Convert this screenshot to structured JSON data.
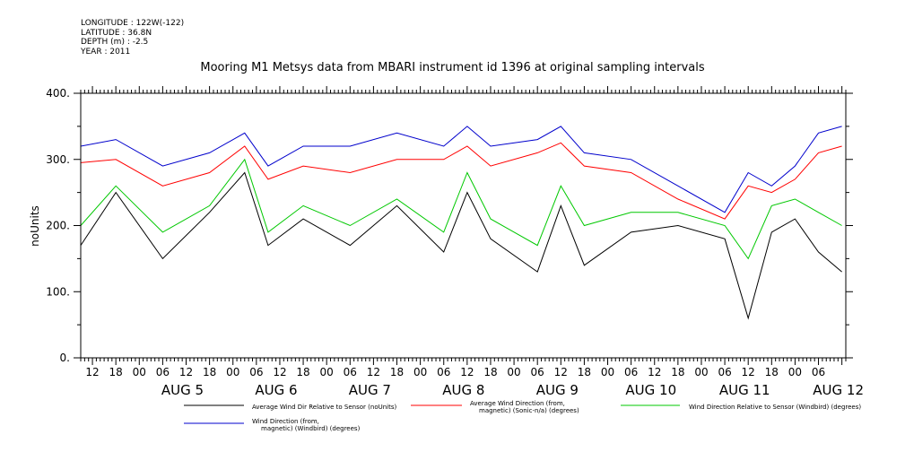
{
  "header": {
    "longitude": "LONGITUDE : 122W(-122)",
    "latitude": "LATITUDE : 36.8N",
    "depth": "DEPTH (m) : -2.5",
    "year": "YEAR : 2011"
  },
  "chart_data": {
    "type": "line",
    "title": "Mooring M1 Metsys data from MBARI instrument id 1396 at original sampling intervals",
    "ylabel": "noUnits",
    "xlabel": "",
    "ylim": [
      0,
      400
    ],
    "xlim": [
      "2011-08-04T09:00",
      "2011-08-12T13:00"
    ],
    "yticks": [
      "0.",
      "100.",
      "200.",
      "300.",
      "400."
    ],
    "xtick_hours": [
      "12",
      "18",
      "00",
      "06",
      "12",
      "18",
      "00",
      "06",
      "12",
      "18",
      "00",
      "06",
      "12",
      "18",
      "00",
      "06",
      "12",
      "18",
      "00",
      "06",
      "12",
      "18",
      "00",
      "06",
      "12",
      "18",
      "00",
      "06",
      "12",
      "18",
      "00",
      "06"
    ],
    "day_labels": [
      "AUG  5",
      "AUG  6",
      "AUG  7",
      "AUG  8",
      "AUG  9",
      "AUG 10",
      "AUG 11",
      "AUG 12"
    ],
    "series": [
      {
        "name": "Average Wind Dir Relative to Sensor (noUnits)",
        "color": "#000000",
        "x": [
          "2011-08-04T09:00",
          "2011-08-04T18:00",
          "2011-08-05T06:00",
          "2011-08-05T18:00",
          "2011-08-06T03:00",
          "2011-08-06T09:00",
          "2011-08-06T18:00",
          "2011-08-07T06:00",
          "2011-08-07T18:00",
          "2011-08-08T06:00",
          "2011-08-08T12:00",
          "2011-08-08T18:00",
          "2011-08-09T06:00",
          "2011-08-09T12:00",
          "2011-08-09T18:00",
          "2011-08-10T06:00",
          "2011-08-10T18:00",
          "2011-08-11T06:00",
          "2011-08-11T12:00",
          "2011-08-11T18:00",
          "2011-08-12T00:00",
          "2011-08-12T06:00",
          "2011-08-12T12:00"
        ],
        "values": [
          170,
          250,
          150,
          220,
          280,
          170,
          210,
          170,
          230,
          160,
          250,
          180,
          130,
          230,
          140,
          190,
          200,
          180,
          60,
          190,
          210,
          160,
          130
        ]
      },
      {
        "name": "Average Wind Direction (from, magnetic) (Sonic-n/a) (degrees)",
        "color": "#ff0000",
        "x": [
          "2011-08-04T09:00",
          "2011-08-04T18:00",
          "2011-08-05T06:00",
          "2011-08-05T18:00",
          "2011-08-06T03:00",
          "2011-08-06T09:00",
          "2011-08-06T18:00",
          "2011-08-07T06:00",
          "2011-08-07T18:00",
          "2011-08-08T06:00",
          "2011-08-08T12:00",
          "2011-08-08T18:00",
          "2011-08-09T06:00",
          "2011-08-09T12:00",
          "2011-08-09T18:00",
          "2011-08-10T06:00",
          "2011-08-10T18:00",
          "2011-08-11T06:00",
          "2011-08-11T12:00",
          "2011-08-11T18:00",
          "2011-08-12T00:00",
          "2011-08-12T06:00",
          "2011-08-12T12:00"
        ],
        "values": [
          295,
          300,
          260,
          280,
          320,
          270,
          290,
          280,
          300,
          300,
          320,
          290,
          310,
          325,
          290,
          280,
          240,
          210,
          260,
          250,
          270,
          310,
          320
        ]
      },
      {
        "name": "Wind Direction Relative to Sensor (Windbird) (degrees)",
        "color": "#00c800",
        "x": [
          "2011-08-04T09:00",
          "2011-08-04T18:00",
          "2011-08-05T06:00",
          "2011-08-05T18:00",
          "2011-08-06T03:00",
          "2011-08-06T09:00",
          "2011-08-06T18:00",
          "2011-08-07T06:00",
          "2011-08-07T18:00",
          "2011-08-08T06:00",
          "2011-08-08T12:00",
          "2011-08-08T18:00",
          "2011-08-09T06:00",
          "2011-08-09T12:00",
          "2011-08-09T18:00",
          "2011-08-10T06:00",
          "2011-08-10T18:00",
          "2011-08-11T06:00",
          "2011-08-11T12:00",
          "2011-08-11T18:00",
          "2011-08-12T00:00",
          "2011-08-12T06:00",
          "2011-08-12T12:00"
        ],
        "values": [
          200,
          260,
          190,
          230,
          300,
          190,
          230,
          200,
          240,
          190,
          280,
          210,
          170,
          260,
          200,
          220,
          220,
          200,
          150,
          230,
          240,
          220,
          200
        ]
      },
      {
        "name": "Wind Direction (from, magnetic) (Windbird) (degrees)",
        "color": "#0000cc",
        "x": [
          "2011-08-04T09:00",
          "2011-08-04T18:00",
          "2011-08-05T06:00",
          "2011-08-05T18:00",
          "2011-08-06T03:00",
          "2011-08-06T09:00",
          "2011-08-06T18:00",
          "2011-08-07T06:00",
          "2011-08-07T18:00",
          "2011-08-08T06:00",
          "2011-08-08T12:00",
          "2011-08-08T18:00",
          "2011-08-09T06:00",
          "2011-08-09T12:00",
          "2011-08-09T18:00",
          "2011-08-10T06:00",
          "2011-08-10T18:00",
          "2011-08-11T06:00",
          "2011-08-11T12:00",
          "2011-08-11T18:00",
          "2011-08-12T00:00",
          "2011-08-12T06:00",
          "2011-08-12T12:00"
        ],
        "values": [
          320,
          330,
          290,
          310,
          340,
          290,
          320,
          320,
          340,
          320,
          350,
          320,
          330,
          350,
          310,
          300,
          260,
          220,
          280,
          260,
          290,
          340,
          350
        ]
      }
    ],
    "grid": false,
    "legend": "bottom"
  }
}
